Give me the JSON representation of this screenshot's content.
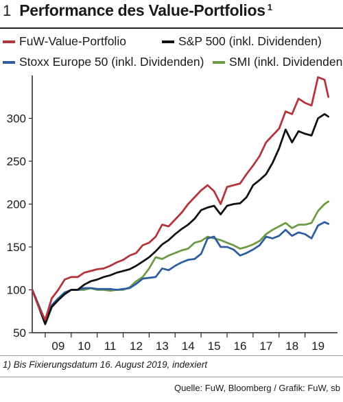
{
  "header": {
    "number": "1",
    "title": "Performance des Value-Portfolios",
    "footnote_marker": "1"
  },
  "footnote": "1) Bis Fixierungsdatum 16. August 2019, indexiert",
  "source": "Quelle: FuW, Bloomberg / Grafik: FuW, sb",
  "chart_data": {
    "type": "line",
    "xlim": [
      2008.0,
      2019.75
    ],
    "ylim": [
      50,
      350
    ],
    "yticks": [
      50,
      100,
      150,
      200,
      250,
      300
    ],
    "xticks": [
      {
        "label": "09",
        "x": 2009.0
      },
      {
        "label": "10",
        "x": 2010.0
      },
      {
        "label": "11",
        "x": 2011.0
      },
      {
        "label": "12",
        "x": 2012.0
      },
      {
        "label": "13",
        "x": 2013.0
      },
      {
        "label": "14",
        "x": 2014.0
      },
      {
        "label": "15",
        "x": 2015.0
      },
      {
        "label": "16",
        "x": 2016.0
      },
      {
        "label": "17",
        "x": 2017.0
      },
      {
        "label": "18",
        "x": 2018.0
      },
      {
        "label": "19",
        "x": 2019.0
      }
    ],
    "grid": false,
    "legend_position": "top",
    "series": [
      {
        "name": "FuW-Value-Portfolio",
        "color": "#b3343a",
        "points": [
          [
            2008.0,
            100
          ],
          [
            2008.25,
            80
          ],
          [
            2008.5,
            65
          ],
          [
            2008.75,
            90
          ],
          [
            2009.0,
            100
          ],
          [
            2009.25,
            112
          ],
          [
            2009.5,
            115
          ],
          [
            2009.75,
            115
          ],
          [
            2010.0,
            120
          ],
          [
            2010.25,
            122
          ],
          [
            2010.5,
            124
          ],
          [
            2010.75,
            125
          ],
          [
            2011.0,
            128
          ],
          [
            2011.25,
            132
          ],
          [
            2011.5,
            135
          ],
          [
            2011.75,
            140
          ],
          [
            2012.0,
            143
          ],
          [
            2012.25,
            152
          ],
          [
            2012.5,
            155
          ],
          [
            2012.75,
            162
          ],
          [
            2013.0,
            176
          ],
          [
            2013.25,
            174
          ],
          [
            2013.5,
            182
          ],
          [
            2013.75,
            190
          ],
          [
            2014.0,
            200
          ],
          [
            2014.25,
            208
          ],
          [
            2014.5,
            216
          ],
          [
            2014.75,
            222
          ],
          [
            2015.0,
            215
          ],
          [
            2015.25,
            200
          ],
          [
            2015.5,
            220
          ],
          [
            2015.75,
            222
          ],
          [
            2016.0,
            224
          ],
          [
            2016.25,
            235
          ],
          [
            2016.5,
            245
          ],
          [
            2016.75,
            256
          ],
          [
            2017.0,
            272
          ],
          [
            2017.25,
            280
          ],
          [
            2017.5,
            288
          ],
          [
            2017.75,
            308
          ],
          [
            2018.0,
            305
          ],
          [
            2018.25,
            323
          ],
          [
            2018.5,
            318
          ],
          [
            2018.75,
            315
          ],
          [
            2019.0,
            348
          ],
          [
            2019.25,
            345
          ],
          [
            2019.4,
            325
          ]
        ]
      },
      {
        "name": "S&P 500 (inkl. Dividenden)",
        "color": "#111111",
        "points": [
          [
            2008.0,
            100
          ],
          [
            2008.25,
            80
          ],
          [
            2008.5,
            60
          ],
          [
            2008.75,
            80
          ],
          [
            2009.0,
            88
          ],
          [
            2009.25,
            95
          ],
          [
            2009.5,
            100
          ],
          [
            2009.75,
            100
          ],
          [
            2010.0,
            106
          ],
          [
            2010.25,
            110
          ],
          [
            2010.5,
            112
          ],
          [
            2010.75,
            115
          ],
          [
            2011.0,
            117
          ],
          [
            2011.25,
            120
          ],
          [
            2011.5,
            122
          ],
          [
            2011.75,
            124
          ],
          [
            2012.0,
            128
          ],
          [
            2012.25,
            133
          ],
          [
            2012.5,
            138
          ],
          [
            2012.75,
            145
          ],
          [
            2013.0,
            153
          ],
          [
            2013.25,
            158
          ],
          [
            2013.5,
            165
          ],
          [
            2013.75,
            171
          ],
          [
            2014.0,
            176
          ],
          [
            2014.25,
            183
          ],
          [
            2014.5,
            193
          ],
          [
            2014.75,
            196
          ],
          [
            2015.0,
            198
          ],
          [
            2015.25,
            188
          ],
          [
            2015.5,
            198
          ],
          [
            2015.75,
            200
          ],
          [
            2016.0,
            201
          ],
          [
            2016.25,
            208
          ],
          [
            2016.5,
            222
          ],
          [
            2016.75,
            228
          ],
          [
            2017.0,
            235
          ],
          [
            2017.25,
            248
          ],
          [
            2017.5,
            265
          ],
          [
            2017.75,
            287
          ],
          [
            2018.0,
            272
          ],
          [
            2018.25,
            285
          ],
          [
            2018.5,
            282
          ],
          [
            2018.75,
            280
          ],
          [
            2019.0,
            300
          ],
          [
            2019.25,
            305
          ],
          [
            2019.4,
            302
          ]
        ]
      },
      {
        "name": "Stoxx Europe 50 (inkl. Dividenden)",
        "color": "#2e5da0",
        "points": [
          [
            2008.0,
            100
          ],
          [
            2008.25,
            82
          ],
          [
            2008.5,
            64
          ],
          [
            2008.75,
            82
          ],
          [
            2009.0,
            90
          ],
          [
            2009.25,
            97
          ],
          [
            2009.5,
            100
          ],
          [
            2009.75,
            100
          ],
          [
            2010.0,
            102
          ],
          [
            2010.25,
            102
          ],
          [
            2010.5,
            101
          ],
          [
            2010.75,
            101
          ],
          [
            2011.0,
            101
          ],
          [
            2011.25,
            100
          ],
          [
            2011.5,
            101
          ],
          [
            2011.75,
            102
          ],
          [
            2012.0,
            107
          ],
          [
            2012.25,
            113
          ],
          [
            2012.5,
            114
          ],
          [
            2012.75,
            115
          ],
          [
            2013.0,
            125
          ],
          [
            2013.25,
            123
          ],
          [
            2013.5,
            128
          ],
          [
            2013.75,
            132
          ],
          [
            2014.0,
            135
          ],
          [
            2014.25,
            136
          ],
          [
            2014.5,
            142
          ],
          [
            2014.75,
            160
          ],
          [
            2015.0,
            162
          ],
          [
            2015.25,
            150
          ],
          [
            2015.5,
            150
          ],
          [
            2015.75,
            147
          ],
          [
            2016.0,
            140
          ],
          [
            2016.25,
            143
          ],
          [
            2016.5,
            147
          ],
          [
            2016.75,
            152
          ],
          [
            2017.0,
            162
          ],
          [
            2017.25,
            160
          ],
          [
            2017.5,
            163
          ],
          [
            2017.75,
            170
          ],
          [
            2018.0,
            163
          ],
          [
            2018.25,
            167
          ],
          [
            2018.5,
            165
          ],
          [
            2018.75,
            160
          ],
          [
            2019.0,
            175
          ],
          [
            2019.25,
            179
          ],
          [
            2019.4,
            177
          ]
        ]
      },
      {
        "name": "SMI (inkl. Dividenden)",
        "color": "#6f9a45",
        "points": [
          [
            2008.0,
            100
          ],
          [
            2008.25,
            82
          ],
          [
            2008.5,
            63
          ],
          [
            2008.75,
            80
          ],
          [
            2009.0,
            88
          ],
          [
            2009.25,
            96
          ],
          [
            2009.5,
            100
          ],
          [
            2009.75,
            100
          ],
          [
            2010.0,
            100
          ],
          [
            2010.25,
            102
          ],
          [
            2010.5,
            100
          ],
          [
            2010.75,
            100
          ],
          [
            2011.0,
            99
          ],
          [
            2011.25,
            100
          ],
          [
            2011.5,
            100
          ],
          [
            2011.75,
            103
          ],
          [
            2012.0,
            110
          ],
          [
            2012.25,
            115
          ],
          [
            2012.5,
            125
          ],
          [
            2012.75,
            138
          ],
          [
            2013.0,
            136
          ],
          [
            2013.25,
            140
          ],
          [
            2013.5,
            143
          ],
          [
            2013.75,
            146
          ],
          [
            2014.0,
            148
          ],
          [
            2014.25,
            155
          ],
          [
            2014.5,
            157
          ],
          [
            2014.75,
            162
          ],
          [
            2015.0,
            160
          ],
          [
            2015.25,
            158
          ],
          [
            2015.5,
            155
          ],
          [
            2015.75,
            152
          ],
          [
            2016.0,
            148
          ],
          [
            2016.25,
            150
          ],
          [
            2016.5,
            153
          ],
          [
            2016.75,
            157
          ],
          [
            2017.0,
            165
          ],
          [
            2017.25,
            170
          ],
          [
            2017.5,
            174
          ],
          [
            2017.75,
            178
          ],
          [
            2018.0,
            172
          ],
          [
            2018.25,
            176
          ],
          [
            2018.5,
            176
          ],
          [
            2018.75,
            178
          ],
          [
            2019.0,
            192
          ],
          [
            2019.25,
            200
          ],
          [
            2019.4,
            203
          ]
        ]
      }
    ]
  }
}
